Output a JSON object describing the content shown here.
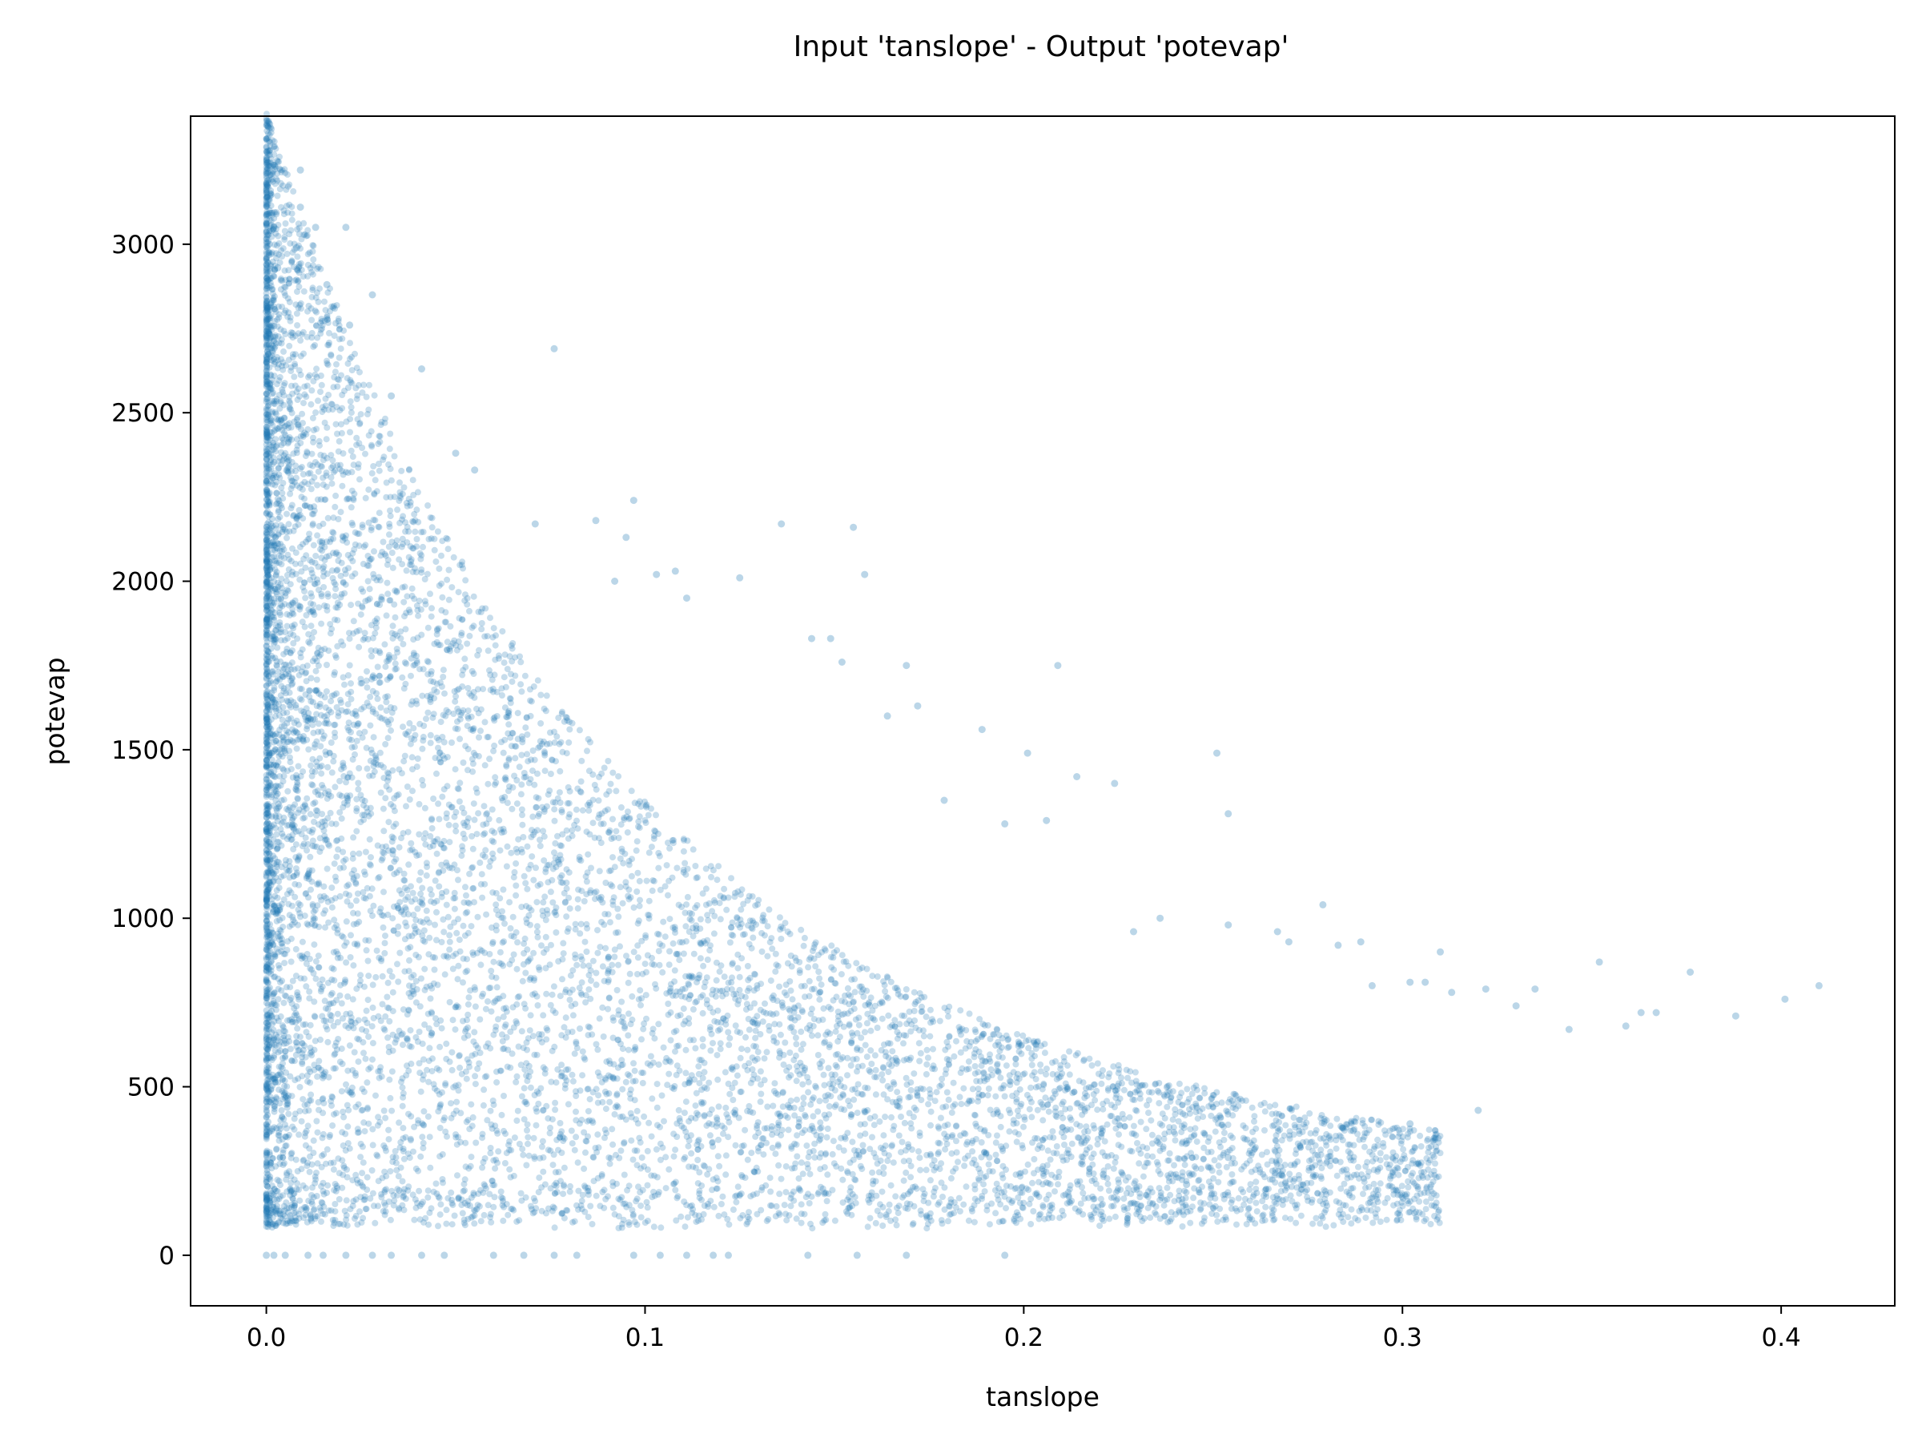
{
  "chart_data": {
    "type": "scatter",
    "title": "Input 'tanslope' - Output 'potevap'",
    "xlabel": "tanslope",
    "ylabel": "potevap",
    "xlim": [
      -0.02,
      0.43
    ],
    "ylim": [
      -150,
      3380
    ],
    "xticks": [
      0.0,
      0.1,
      0.2,
      0.3,
      0.4
    ],
    "xtick_labels": [
      "0.0",
      "0.1",
      "0.2",
      "0.3",
      "0.4"
    ],
    "yticks": [
      0,
      500,
      1000,
      1500,
      2000,
      2500,
      3000
    ],
    "ytick_labels": [
      "0",
      "500",
      "1000",
      "1500",
      "2000",
      "2500",
      "3000"
    ],
    "grid": false,
    "legend": "none",
    "marker_color": "#1f77b4",
    "marker_alpha": 0.25,
    "series": [
      {
        "points": [
          [
            0.009,
            3220
          ],
          [
            0.009,
            3110
          ],
          [
            0.013,
            3050
          ],
          [
            0.021,
            3050
          ],
          [
            0.002,
            3050
          ],
          [
            0.008,
            2990
          ],
          [
            0.003,
            2930
          ],
          [
            0.016,
            2880
          ],
          [
            0.028,
            2850
          ],
          [
            0.0,
            2800
          ],
          [
            0.076,
            2690
          ],
          [
            0.041,
            2630
          ],
          [
            0.022,
            2760
          ],
          [
            0.033,
            2550
          ],
          [
            0.05,
            2380
          ],
          [
            0.055,
            2330
          ],
          [
            0.097,
            2240
          ],
          [
            0.071,
            2170
          ],
          [
            0.087,
            2180
          ],
          [
            0.136,
            2170
          ],
          [
            0.155,
            2160
          ],
          [
            0.095,
            2130
          ],
          [
            0.108,
            2030
          ],
          [
            0.103,
            2020
          ],
          [
            0.158,
            2020
          ],
          [
            0.125,
            2010
          ],
          [
            0.092,
            2000
          ],
          [
            0.111,
            1950
          ],
          [
            0.144,
            1830
          ],
          [
            0.149,
            1830
          ],
          [
            0.152,
            1760
          ],
          [
            0.169,
            1750
          ],
          [
            0.209,
            1750
          ],
          [
            0.164,
            1600
          ],
          [
            0.172,
            1630
          ],
          [
            0.189,
            1560
          ],
          [
            0.201,
            1490
          ],
          [
            0.251,
            1490
          ],
          [
            0.179,
            1350
          ],
          [
            0.214,
            1420
          ],
          [
            0.224,
            1400
          ],
          [
            0.254,
            1310
          ],
          [
            0.195,
            1280
          ],
          [
            0.206,
            1290
          ],
          [
            0.236,
            1000
          ],
          [
            0.229,
            960
          ],
          [
            0.254,
            980
          ],
          [
            0.279,
            1040
          ],
          [
            0.267,
            960
          ],
          [
            0.27,
            930
          ],
          [
            0.289,
            930
          ],
          [
            0.283,
            920
          ],
          [
            0.292,
            800
          ],
          [
            0.302,
            810
          ],
          [
            0.306,
            810
          ],
          [
            0.31,
            900
          ],
          [
            0.313,
            780
          ],
          [
            0.322,
            790
          ],
          [
            0.33,
            740
          ],
          [
            0.335,
            790
          ],
          [
            0.344,
            670
          ],
          [
            0.352,
            870
          ],
          [
            0.359,
            680
          ],
          [
            0.363,
            720
          ],
          [
            0.367,
            720
          ],
          [
            0.376,
            840
          ],
          [
            0.388,
            710
          ],
          [
            0.401,
            760
          ],
          [
            0.41,
            800
          ],
          [
            0.32,
            430
          ],
          [
            0.302,
            390
          ],
          [
            0.287,
            370
          ],
          [
            0.268,
            240
          ],
          [
            0.254,
            290
          ],
          [
            0.243,
            210
          ],
          [
            0.221,
            240
          ],
          [
            0.195,
            0
          ],
          [
            0.169,
            0
          ],
          [
            0.156,
            0
          ],
          [
            0.143,
            0
          ],
          [
            0.122,
            0
          ],
          [
            0.118,
            0
          ],
          [
            0.111,
            0
          ],
          [
            0.104,
            0
          ],
          [
            0.097,
            0
          ],
          [
            0.082,
            0
          ],
          [
            0.076,
            0
          ],
          [
            0.068,
            0
          ],
          [
            0.06,
            0
          ],
          [
            0.047,
            0
          ],
          [
            0.041,
            0
          ],
          [
            0.033,
            0
          ],
          [
            0.028,
            0
          ],
          [
            0.021,
            0
          ],
          [
            0.015,
            0
          ],
          [
            0.011,
            0
          ],
          [
            0.005,
            0
          ],
          [
            0.002,
            0
          ],
          [
            0.0,
            0
          ]
        ]
      }
    ]
  }
}
